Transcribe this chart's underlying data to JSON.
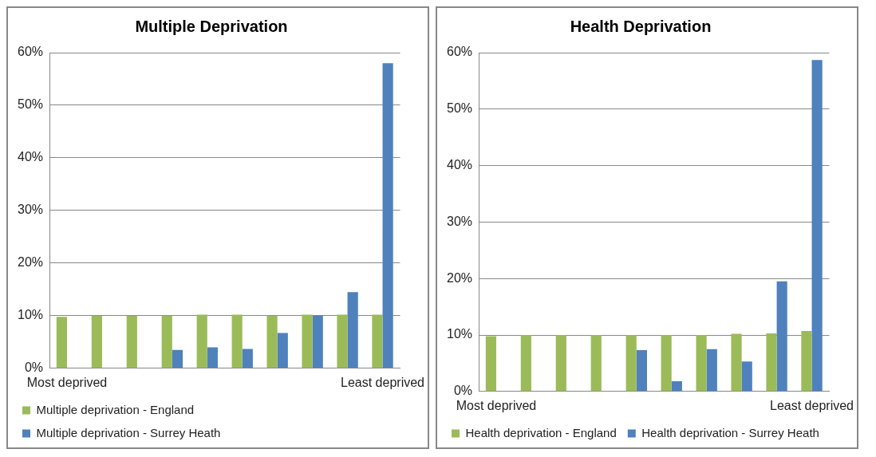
{
  "chart_data": [
    {
      "type": "bar",
      "title": "Multiple Deprivation",
      "categories": [
        "Most deprived",
        null,
        null,
        null,
        null,
        null,
        null,
        null,
        null,
        "Least deprived"
      ],
      "series": [
        {
          "name": "Multiple deprivation - England",
          "color": "#9bbb59",
          "values": [
            9.8,
            10,
            10,
            10,
            10.2,
            10.2,
            10,
            10.2,
            10.2,
            10.2
          ]
        },
        {
          "name": "Multiple deprivation - Surrey Heath",
          "color": "#4f81bd",
          "values": [
            0,
            0,
            0,
            3.5,
            4,
            3.7,
            6.7,
            10,
            14.5,
            58
          ]
        }
      ],
      "ylim": [
        0,
        60
      ],
      "yticks": [
        {
          "value": 0,
          "label": "0%"
        },
        {
          "value": 10,
          "label": "10%"
        },
        {
          "value": 20,
          "label": "20%"
        },
        {
          "value": 30,
          "label": "30%"
        },
        {
          "value": 40,
          "label": "40%"
        },
        {
          "value": 50,
          "label": "50%"
        },
        {
          "value": 60,
          "label": "60%"
        }
      ],
      "grid": "y",
      "legend": "bottom"
    },
    {
      "type": "bar",
      "title": "Health Deprivation",
      "categories": [
        "Most deprived",
        null,
        null,
        null,
        null,
        null,
        null,
        null,
        null,
        "Least deprived"
      ],
      "series": [
        {
          "name": "Health deprivation - England",
          "color": "#9bbb59",
          "values": [
            9.8,
            10,
            10,
            10,
            10,
            10,
            10,
            10.2,
            10.3,
            10.7
          ]
        },
        {
          "name": "Health deprivation - Surrey Heath",
          "color": "#4f81bd",
          "values": [
            0,
            0,
            0,
            0,
            7.3,
            1.8,
            7.5,
            5.3,
            19.5,
            58.7
          ]
        }
      ],
      "ylim": [
        0,
        60
      ],
      "yticks": [
        {
          "value": 0,
          "label": "0%"
        },
        {
          "value": 10,
          "label": "10%"
        },
        {
          "value": 20,
          "label": "20%"
        },
        {
          "value": 30,
          "label": "30%"
        },
        {
          "value": 40,
          "label": "40%"
        },
        {
          "value": 50,
          "label": "50%"
        },
        {
          "value": 60,
          "label": "60%"
        }
      ],
      "grid": "y",
      "legend": "bottom"
    }
  ]
}
